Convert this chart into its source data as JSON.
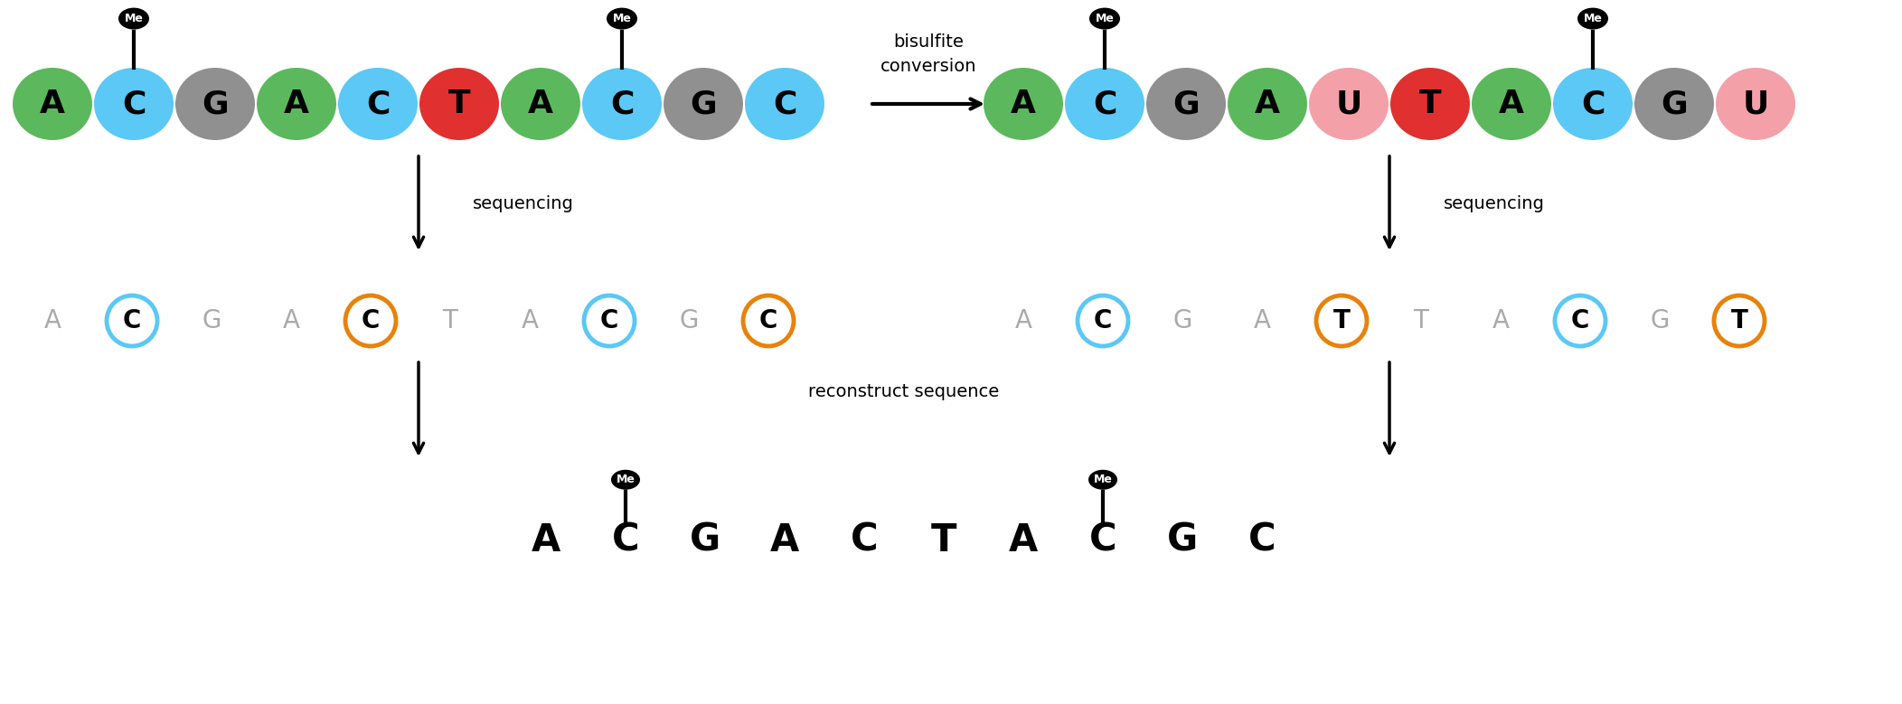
{
  "top_left_seq": [
    "A",
    "C",
    "G",
    "A",
    "C",
    "T",
    "A",
    "C",
    "G",
    "C"
  ],
  "top_left_colors": [
    "#5cb85c",
    "#5bc8f5",
    "#909090",
    "#5cb85c",
    "#5bc8f5",
    "#e03030",
    "#5cb85c",
    "#5bc8f5",
    "#909090",
    "#5bc8f5"
  ],
  "top_left_me": [
    false,
    true,
    false,
    false,
    false,
    false,
    false,
    true,
    false,
    false
  ],
  "top_right_seq": [
    "A",
    "C",
    "G",
    "A",
    "U",
    "T",
    "A",
    "C",
    "G",
    "U"
  ],
  "top_right_colors": [
    "#5cb85c",
    "#5bc8f5",
    "#909090",
    "#5cb85c",
    "#f4a0a8",
    "#e03030",
    "#5cb85c",
    "#5bc8f5",
    "#909090",
    "#f4a0a8"
  ],
  "top_right_me": [
    false,
    true,
    false,
    false,
    false,
    false,
    false,
    true,
    false,
    false
  ],
  "mid_left_seq": [
    "A",
    "C",
    "G",
    "A",
    "C",
    "T",
    "A",
    "C",
    "G",
    "C"
  ],
  "mid_left_circle": [
    "none",
    "blue",
    "none",
    "none",
    "orange",
    "none",
    "none",
    "blue",
    "none",
    "orange"
  ],
  "mid_right_seq": [
    "A",
    "C",
    "G",
    "A",
    "T",
    "T",
    "A",
    "C",
    "G",
    "T"
  ],
  "mid_right_circle": [
    "none",
    "blue",
    "none",
    "none",
    "orange",
    "none",
    "none",
    "blue",
    "none",
    "orange"
  ],
  "bot_seq": [
    "A",
    "C",
    "G",
    "A",
    "C",
    "T",
    "A",
    "C",
    "G",
    "C"
  ],
  "bot_me": [
    false,
    true,
    false,
    false,
    false,
    false,
    false,
    true,
    false,
    false
  ],
  "bg_color": "#ffffff",
  "bisulfite_text": "bisulfite\nconversion",
  "sequencing_text": "sequencing",
  "reconstruct_text": "reconstruct sequence"
}
